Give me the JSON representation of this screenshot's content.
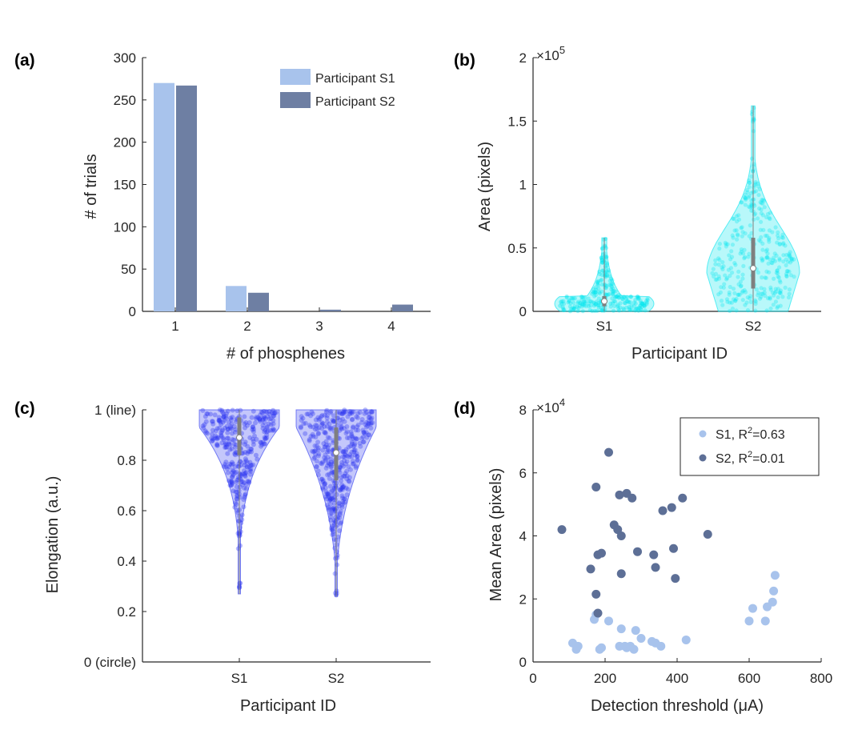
{
  "chart_data": [
    {
      "panel": "(a)",
      "type": "bar",
      "xlabel": "# of phosphenes",
      "ylabel": "# of trials",
      "categories": [
        "1",
        "2",
        "3",
        "4"
      ],
      "ylim": [
        0,
        300
      ],
      "yticks": [
        "0",
        "50",
        "100",
        "150",
        "200",
        "250",
        "300"
      ],
      "series": [
        {
          "name": "Participant S1",
          "color": "#a8c3ec",
          "values": [
            270,
            30,
            0,
            0
          ]
        },
        {
          "name": "Participant S2",
          "color": "#6e7fa3",
          "values": [
            267,
            22,
            2,
            8
          ]
        }
      ],
      "legend_position": "top-right"
    },
    {
      "panel": "(b)",
      "type": "violin",
      "xlabel": "Participant ID",
      "ylabel": "Area (pixels)",
      "categories": [
        "S1",
        "S2"
      ],
      "ylim": [
        0,
        2
      ],
      "yticks": [
        "0",
        "0.5",
        "1",
        "1.5",
        "2"
      ],
      "exponent_base": "×10",
      "exponent_power": "5",
      "color": "#00e5ee",
      "series": [
        {
          "name": "S1",
          "min": 0.0,
          "q1": 0.04,
          "median": 0.08,
          "q3": 0.12,
          "max": 0.58
        },
        {
          "name": "S2",
          "min": 0.0,
          "q1": 0.18,
          "median": 0.34,
          "q3": 0.58,
          "max": 1.62
        }
      ]
    },
    {
      "panel": "(c)",
      "type": "violin",
      "xlabel": "Participant ID",
      "ylabel": "Elongation (a.u.)",
      "categories": [
        "S1",
        "S2"
      ],
      "ylim": [
        0,
        1
      ],
      "yticks": [
        "0 (circle)",
        "0.2",
        "0.4",
        "0.6",
        "0.8",
        "1 (line)"
      ],
      "color": "#2a35f0",
      "series": [
        {
          "name": "S1",
          "min": 0.27,
          "q1": 0.82,
          "median": 0.89,
          "q3": 0.97,
          "max": 1.0
        },
        {
          "name": "S2",
          "min": 0.26,
          "q1": 0.72,
          "median": 0.83,
          "q3": 0.93,
          "max": 1.0
        }
      ]
    },
    {
      "panel": "(d)",
      "type": "scatter",
      "xlabel": "Detection threshold (μA)",
      "ylabel": "Mean Area (pixels)",
      "xlim": [
        0,
        800
      ],
      "ylim": [
        0,
        8
      ],
      "xticks": [
        "0",
        "200",
        "400",
        "600",
        "800"
      ],
      "yticks": [
        "0",
        "2",
        "4",
        "6",
        "8"
      ],
      "exponent_base": "×10",
      "exponent_power": "4",
      "legend_position": "top-right",
      "series": [
        {
          "name": "S1, R",
          "r2_superscript": "2",
          "r2_value": "=0.63",
          "color": "#a8c3ec",
          "points": [
            [
              110,
              0.6
            ],
            [
              120,
              0.4
            ],
            [
              125,
              0.5
            ],
            [
              170,
              1.35
            ],
            [
              175,
              1.5
            ],
            [
              185,
              0.4
            ],
            [
              190,
              0.45
            ],
            [
              210,
              1.3
            ],
            [
              240,
              0.5
            ],
            [
              245,
              1.05
            ],
            [
              255,
              0.5
            ],
            [
              260,
              0.45
            ],
            [
              270,
              0.5
            ],
            [
              280,
              0.4
            ],
            [
              285,
              1.0
            ],
            [
              300,
              0.75
            ],
            [
              330,
              0.65
            ],
            [
              340,
              0.6
            ],
            [
              355,
              0.5
            ],
            [
              425,
              0.7
            ],
            [
              600,
              1.3
            ],
            [
              610,
              1.7
            ],
            [
              645,
              1.3
            ],
            [
              650,
              1.75
            ],
            [
              665,
              1.9
            ],
            [
              668,
              2.25
            ],
            [
              672,
              2.75
            ]
          ]
        },
        {
          "name": "S2, R",
          "r2_superscript": "2",
          "r2_value": "=0.01",
          "color": "#5d6f96",
          "points": [
            [
              80,
              4.2
            ],
            [
              160,
              2.95
            ],
            [
              175,
              2.15
            ],
            [
              175,
              5.55
            ],
            [
              180,
              1.55
            ],
            [
              180,
              3.4
            ],
            [
              190,
              3.45
            ],
            [
              210,
              6.65
            ],
            [
              225,
              4.35
            ],
            [
              235,
              4.2
            ],
            [
              240,
              5.3
            ],
            [
              245,
              4.0
            ],
            [
              245,
              2.8
            ],
            [
              260,
              5.35
            ],
            [
              275,
              5.2
            ],
            [
              290,
              3.5
            ],
            [
              335,
              3.4
            ],
            [
              340,
              3.0
            ],
            [
              360,
              4.8
            ],
            [
              385,
              4.9
            ],
            [
              390,
              3.6
            ],
            [
              395,
              2.65
            ],
            [
              415,
              5.2
            ],
            [
              485,
              4.05
            ]
          ]
        }
      ]
    }
  ]
}
